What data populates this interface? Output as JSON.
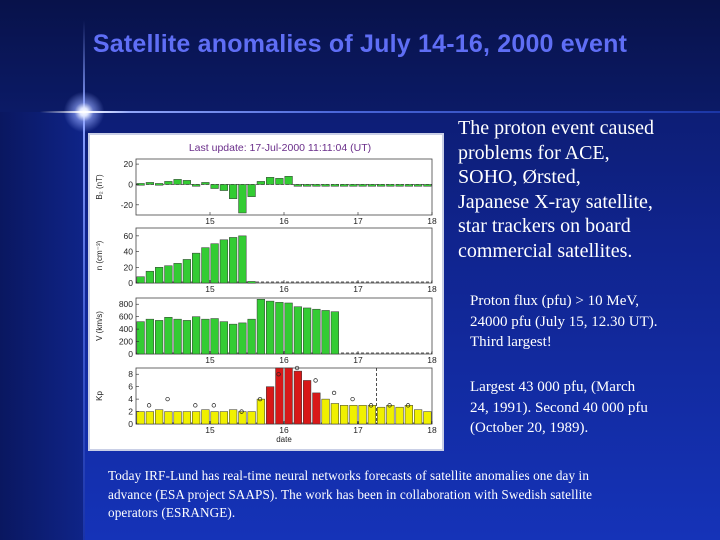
{
  "title": "Satellite anomalies of July 14-16, 2000 event",
  "main_text_lines": [
    "The proton event caused",
    "problems for ACE,",
    "SOHO, Ørsted,",
    "Japanese X-ray satellite,",
    "star trackers on board",
    "commercial satellites."
  ],
  "proton_flux_lines": [
    "Proton flux (pfu) > 10 MeV,",
    "24000 pfu (July 15, 12.30 UT).",
    "Third largest!"
  ],
  "largest_lines": [
    "Largest 43 000 pfu, (March",
    "24, 1991). Second 40 000 pfu",
    "(October 20, 1989)."
  ],
  "footer_lines": [
    "Today IRF-Lund has real-time neural networks forecasts of satellite anomalies one day in",
    "advance (ESA project SAAPS). The work has been in collaboration with Swedish satellite",
    "operators (ESRANGE)."
  ],
  "colors": {
    "title": "#5f6ef5",
    "bar_green": "#33cc33",
    "bar_yellow": "#f0f000",
    "bar_red": "#d81818",
    "header_text": "#6a2e8a"
  },
  "chart_data": [
    {
      "type": "bar",
      "header": "Last update: 17-Jul-2000 11:11:04 (UT)",
      "ylabel": "B₂ (nT)",
      "x_ticks": [
        "15",
        "16",
        "17",
        "18"
      ],
      "y_ticks": [
        "20",
        "0",
        "-20"
      ],
      "ylim": [
        -30,
        25
      ],
      "x": [
        14.0,
        14.125,
        14.25,
        14.375,
        14.5,
        14.625,
        14.75,
        14.875,
        15.0,
        15.125,
        15.25,
        15.375,
        15.5,
        15.625,
        15.75,
        15.875,
        16.0,
        16.125,
        16.25,
        16.375,
        16.5,
        16.625,
        16.75,
        16.875,
        17.0,
        17.125,
        17.25,
        17.375,
        17.5,
        17.625,
        17.75,
        17.875
      ],
      "values": [
        1,
        2,
        1,
        3,
        5,
        4,
        -1,
        2,
        -4,
        -6,
        -14,
        -28,
        -12,
        3,
        7,
        6,
        8,
        0,
        0,
        0,
        0,
        0,
        0,
        0,
        0,
        0,
        0,
        0,
        0,
        0,
        0,
        0
      ],
      "bar_color": "#33cc33"
    },
    {
      "type": "bar",
      "ylabel": "n (cm⁻³)",
      "x_ticks": [
        "15",
        "16",
        "17",
        "18"
      ],
      "y_ticks": [
        "60",
        "40",
        "20",
        "0"
      ],
      "ylim": [
        0,
        70
      ],
      "x": [
        14.0,
        14.125,
        14.25,
        14.375,
        14.5,
        14.625,
        14.75,
        14.875,
        15.0,
        15.125,
        15.25,
        15.375,
        15.5,
        15.625,
        15.75,
        15.875,
        16.0,
        16.125,
        16.25,
        16.375,
        16.5,
        16.625,
        16.75,
        16.875,
        17.0,
        17.125,
        17.25,
        17.375,
        17.5,
        17.625,
        17.75,
        17.875
      ],
      "values": [
        8,
        15,
        20,
        22,
        25,
        30,
        38,
        45,
        50,
        55,
        58,
        60,
        2,
        0,
        0,
        0,
        0,
        0,
        0,
        0,
        0,
        0,
        0,
        0,
        0,
        0,
        0,
        0,
        0,
        0,
        0,
        0
      ],
      "bar_color": "#33cc33"
    },
    {
      "type": "bar",
      "ylabel": "V (km/s)",
      "x_ticks": [
        "15",
        "16",
        "17",
        "18"
      ],
      "y_ticks": [
        "800",
        "600",
        "400",
        "200",
        "0"
      ],
      "ylim": [
        0,
        900
      ],
      "x": [
        14.0,
        14.125,
        14.25,
        14.375,
        14.5,
        14.625,
        14.75,
        14.875,
        15.0,
        15.125,
        15.25,
        15.375,
        15.5,
        15.625,
        15.75,
        15.875,
        16.0,
        16.125,
        16.25,
        16.375,
        16.5,
        16.625,
        16.75,
        16.875,
        17.0,
        17.125,
        17.25,
        17.375,
        17.5,
        17.625,
        17.75,
        17.875
      ],
      "values": [
        520,
        560,
        540,
        590,
        560,
        540,
        600,
        560,
        570,
        520,
        480,
        500,
        560,
        880,
        850,
        830,
        820,
        760,
        740,
        720,
        700,
        680,
        0,
        0,
        0,
        0,
        0,
        0,
        0,
        0,
        0,
        0
      ],
      "bar_color": "#33cc33"
    },
    {
      "type": "bar",
      "ylabel": "Kp",
      "xlabel": "date",
      "x_ticks": [
        "15",
        "16",
        "17",
        "18"
      ],
      "y_ticks": [
        "8",
        "6",
        "4",
        "2",
        "0"
      ],
      "ylim": [
        0,
        9
      ],
      "x": [
        14.0,
        14.125,
        14.25,
        14.375,
        14.5,
        14.625,
        14.75,
        14.875,
        15.0,
        15.125,
        15.25,
        15.375,
        15.5,
        15.625,
        15.75,
        15.875,
        16.0,
        16.125,
        16.25,
        16.375,
        16.5,
        16.625,
        16.75,
        16.875,
        17.0,
        17.125,
        17.25,
        17.375,
        17.5,
        17.625,
        17.75,
        17.875
      ],
      "values": [
        2,
        2,
        2.3,
        2,
        2,
        2,
        2,
        2.3,
        2,
        2,
        2.3,
        2,
        2,
        4,
        6,
        9,
        9,
        8.5,
        7,
        5,
        4,
        3.3,
        3,
        3,
        3,
        3,
        2.7,
        3,
        2.7,
        3,
        2.3,
        2
      ],
      "colors": [
        "#f0f000",
        "#f0f000",
        "#f0f000",
        "#f0f000",
        "#f0f000",
        "#f0f000",
        "#f0f000",
        "#f0f000",
        "#f0f000",
        "#f0f000",
        "#f0f000",
        "#f0f000",
        "#f0f000",
        "#f0f000",
        "#d81818",
        "#d81818",
        "#d81818",
        "#d81818",
        "#d81818",
        "#d81818",
        "#f0f000",
        "#f0f000",
        "#f0f000",
        "#f0f000",
        "#f0f000",
        "#f0f000",
        "#f0f000",
        "#f0f000",
        "#f0f000",
        "#f0f000",
        "#f0f000",
        "#f0f000"
      ],
      "forecast_x": [
        14.125,
        14.375,
        14.75,
        15.0,
        15.375,
        15.625,
        15.875,
        16.125,
        16.375,
        16.625,
        16.875,
        17.125,
        17.375,
        17.625
      ],
      "forecast_values": [
        3,
        4,
        3,
        3,
        2,
        4,
        8,
        9,
        7,
        5,
        4,
        3,
        3,
        3
      ],
      "now_line_x": 17.25
    }
  ]
}
